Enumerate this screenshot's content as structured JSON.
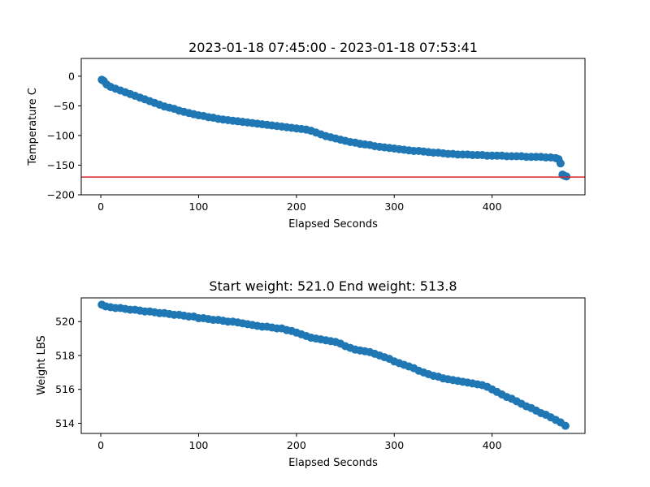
{
  "chart_data": [
    {
      "type": "scatter",
      "title": "2023-01-18 07:45:00 - 2023-01-18 07:53:41",
      "xlabel": "Elapsed Seconds",
      "ylabel": "Temperature C",
      "xlim": [
        -20,
        495
      ],
      "ylim": [
        -200,
        30
      ],
      "xticks": [
        0,
        100,
        200,
        300,
        400
      ],
      "yticks": [
        0,
        -50,
        -100,
        -150,
        -200
      ],
      "color": "#1f77b4",
      "hline": {
        "y": -170,
        "color": "#d62728"
      },
      "points": [
        [
          1,
          -6
        ],
        [
          3,
          -8
        ],
        [
          6,
          -14
        ],
        [
          10,
          -18
        ],
        [
          15,
          -21
        ],
        [
          20,
          -24
        ],
        [
          25,
          -27
        ],
        [
          30,
          -30
        ],
        [
          35,
          -33
        ],
        [
          40,
          -36
        ],
        [
          45,
          -39
        ],
        [
          50,
          -42
        ],
        [
          55,
          -45
        ],
        [
          60,
          -48
        ],
        [
          65,
          -51
        ],
        [
          70,
          -53
        ],
        [
          75,
          -55
        ],
        [
          80,
          -58
        ],
        [
          85,
          -60
        ],
        [
          90,
          -62
        ],
        [
          95,
          -64
        ],
        [
          100,
          -66
        ],
        [
          105,
          -67
        ],
        [
          110,
          -69
        ],
        [
          115,
          -70
        ],
        [
          120,
          -72
        ],
        [
          125,
          -73
        ],
        [
          130,
          -74
        ],
        [
          135,
          -75
        ],
        [
          140,
          -76
        ],
        [
          145,
          -77
        ],
        [
          150,
          -78
        ],
        [
          155,
          -79
        ],
        [
          160,
          -80
        ],
        [
          165,
          -81
        ],
        [
          170,
          -82
        ],
        [
          175,
          -83
        ],
        [
          180,
          -84
        ],
        [
          185,
          -85
        ],
        [
          190,
          -86
        ],
        [
          195,
          -87
        ],
        [
          200,
          -88
        ],
        [
          205,
          -89
        ],
        [
          210,
          -90
        ],
        [
          215,
          -92
        ],
        [
          220,
          -95
        ],
        [
          225,
          -98
        ],
        [
          230,
          -101
        ],
        [
          235,
          -103
        ],
        [
          240,
          -105
        ],
        [
          245,
          -107
        ],
        [
          250,
          -109
        ],
        [
          255,
          -111
        ],
        [
          260,
          -112
        ],
        [
          265,
          -114
        ],
        [
          270,
          -115
        ],
        [
          275,
          -116
        ],
        [
          280,
          -118
        ],
        [
          285,
          -119
        ],
        [
          290,
          -120
        ],
        [
          295,
          -121
        ],
        [
          300,
          -122
        ],
        [
          305,
          -123
        ],
        [
          310,
          -124
        ],
        [
          315,
          -125
        ],
        [
          320,
          -126
        ],
        [
          325,
          -126
        ],
        [
          330,
          -127
        ],
        [
          335,
          -128
        ],
        [
          340,
          -129
        ],
        [
          345,
          -129
        ],
        [
          350,
          -130
        ],
        [
          355,
          -131
        ],
        [
          360,
          -131
        ],
        [
          365,
          -132
        ],
        [
          370,
          -132
        ],
        [
          375,
          -132
        ],
        [
          380,
          -133
        ],
        [
          385,
          -133
        ],
        [
          390,
          -133
        ],
        [
          395,
          -134
        ],
        [
          400,
          -134
        ],
        [
          405,
          -134
        ],
        [
          410,
          -134
        ],
        [
          415,
          -135
        ],
        [
          420,
          -135
        ],
        [
          425,
          -135
        ],
        [
          430,
          -135
        ],
        [
          435,
          -136
        ],
        [
          440,
          -136
        ],
        [
          445,
          -136
        ],
        [
          450,
          -136
        ],
        [
          455,
          -137
        ],
        [
          460,
          -137
        ],
        [
          465,
          -138
        ],
        [
          468,
          -140
        ],
        [
          470,
          -147
        ],
        [
          472,
          -166
        ],
        [
          474,
          -168
        ],
        [
          476,
          -169
        ]
      ]
    },
    {
      "type": "scatter",
      "title": "Start weight: 521.0 End weight: 513.8",
      "xlabel": "Elapsed Seconds",
      "ylabel": "Weight LBS",
      "xlim": [
        -20,
        495
      ],
      "ylim": [
        513.4,
        521.4
      ],
      "xticks": [
        0,
        100,
        200,
        300,
        400
      ],
      "yticks": [
        514,
        516,
        518,
        520
      ],
      "color": "#1f77b4",
      "points": [
        [
          1,
          521.0
        ],
        [
          5,
          520.9
        ],
        [
          10,
          520.85
        ],
        [
          15,
          520.8
        ],
        [
          20,
          520.8
        ],
        [
          25,
          520.75
        ],
        [
          30,
          520.7
        ],
        [
          35,
          520.7
        ],
        [
          40,
          520.65
        ],
        [
          45,
          520.6
        ],
        [
          50,
          520.6
        ],
        [
          55,
          520.55
        ],
        [
          60,
          520.5
        ],
        [
          65,
          520.5
        ],
        [
          70,
          520.45
        ],
        [
          75,
          520.4
        ],
        [
          80,
          520.4
        ],
        [
          85,
          520.35
        ],
        [
          90,
          520.3
        ],
        [
          95,
          520.3
        ],
        [
          100,
          520.2
        ],
        [
          105,
          520.2
        ],
        [
          110,
          520.15
        ],
        [
          115,
          520.1
        ],
        [
          120,
          520.1
        ],
        [
          125,
          520.05
        ],
        [
          130,
          520.0
        ],
        [
          135,
          520.0
        ],
        [
          140,
          519.95
        ],
        [
          145,
          519.9
        ],
        [
          150,
          519.85
        ],
        [
          155,
          519.8
        ],
        [
          160,
          519.75
        ],
        [
          165,
          519.7
        ],
        [
          170,
          519.7
        ],
        [
          175,
          519.65
        ],
        [
          180,
          519.6
        ],
        [
          185,
          519.6
        ],
        [
          190,
          519.5
        ],
        [
          195,
          519.45
        ],
        [
          200,
          519.35
        ],
        [
          205,
          519.25
        ],
        [
          210,
          519.15
        ],
        [
          215,
          519.05
        ],
        [
          220,
          519.0
        ],
        [
          225,
          518.95
        ],
        [
          230,
          518.9
        ],
        [
          235,
          518.85
        ],
        [
          240,
          518.8
        ],
        [
          245,
          518.7
        ],
        [
          250,
          518.55
        ],
        [
          255,
          518.45
        ],
        [
          260,
          518.35
        ],
        [
          265,
          518.3
        ],
        [
          270,
          518.25
        ],
        [
          275,
          518.2
        ],
        [
          280,
          518.1
        ],
        [
          285,
          518.0
        ],
        [
          290,
          517.9
        ],
        [
          295,
          517.8
        ],
        [
          300,
          517.65
        ],
        [
          305,
          517.55
        ],
        [
          310,
          517.45
        ],
        [
          315,
          517.35
        ],
        [
          320,
          517.25
        ],
        [
          325,
          517.1
        ],
        [
          330,
          517.0
        ],
        [
          335,
          516.9
        ],
        [
          340,
          516.8
        ],
        [
          345,
          516.75
        ],
        [
          350,
          516.65
        ],
        [
          355,
          516.6
        ],
        [
          360,
          516.55
        ],
        [
          365,
          516.5
        ],
        [
          370,
          516.45
        ],
        [
          375,
          516.4
        ],
        [
          380,
          516.35
        ],
        [
          385,
          516.3
        ],
        [
          390,
          516.25
        ],
        [
          395,
          516.15
        ],
        [
          400,
          516.0
        ],
        [
          405,
          515.85
        ],
        [
          410,
          515.7
        ],
        [
          415,
          515.55
        ],
        [
          420,
          515.45
        ],
        [
          425,
          515.3
        ],
        [
          430,
          515.15
        ],
        [
          435,
          515.0
        ],
        [
          440,
          514.9
        ],
        [
          445,
          514.75
        ],
        [
          450,
          514.6
        ],
        [
          455,
          514.5
        ],
        [
          460,
          514.35
        ],
        [
          465,
          514.2
        ],
        [
          470,
          514.05
        ],
        [
          475,
          513.85
        ]
      ]
    }
  ]
}
